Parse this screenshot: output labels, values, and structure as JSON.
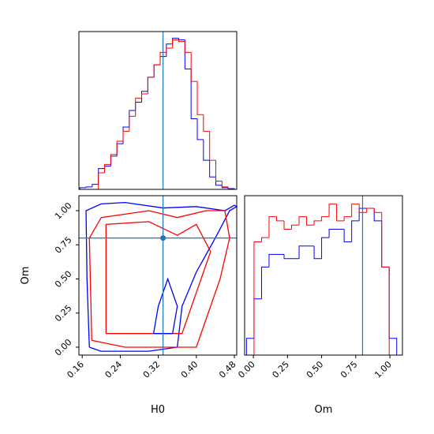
{
  "chart_data": [
    {
      "type": "histogram",
      "xlabel_hidden": true,
      "bins": [
        0.155,
        0.168,
        0.181,
        0.194,
        0.207,
        0.22,
        0.233,
        0.246,
        0.259,
        0.272,
        0.285,
        0.298,
        0.311,
        0.324,
        0.337,
        0.35,
        0.363,
        0.376,
        0.389,
        0.402,
        0.415,
        0.428,
        0.441,
        0.454,
        0.467,
        0.48
      ],
      "xlim": [
        0.153,
        0.485
      ],
      "ylim": [
        0,
        190
      ],
      "truth": 0.33,
      "truth_color": "#1f77b4",
      "series": [
        {
          "color": "#0000ff",
          "values": [
            2,
            3,
            6,
            25,
            28,
            40,
            55,
            75,
            95,
            105,
            118,
            135,
            150,
            160,
            175,
            182,
            180,
            145,
            85,
            60,
            35,
            15,
            5,
            2,
            1
          ]
        },
        {
          "color": "#ff0000",
          "values": [
            0,
            0,
            0,
            20,
            30,
            42,
            58,
            70,
            88,
            110,
            115,
            135,
            150,
            165,
            170,
            180,
            178,
            165,
            130,
            90,
            70,
            35,
            10,
            3,
            0
          ]
        }
      ]
    },
    {
      "type": "contour",
      "xlabel": "H0",
      "ylabel": "Om",
      "xlim": [
        0.153,
        0.485
      ],
      "ylim": [
        -0.058,
        1.11
      ],
      "xticks": [
        0.16,
        0.24,
        0.32,
        {
          "value": 0.4,
          "label": "0.40"
        },
        0.48
      ],
      "yticks": [
        {
          "value": 0,
          "label": "0.00"
        },
        0.25,
        {
          "value": 0.5,
          "label": "0.50"
        },
        0.75,
        {
          "value": 1,
          "label": "1.00"
        }
      ],
      "truth": [
        0.33,
        0.8
      ],
      "truth_color": "#1f77b4",
      "contours": [
        {
          "color": "#0000ff",
          "x": [
            0.175,
            0.17,
            0.168,
            0.2,
            0.25,
            0.33,
            0.4,
            0.46,
            0.48,
            0.485,
            0.47,
            0.44,
            0.4,
            0.37,
            0.36,
            0.3,
            0.2,
            0.175
          ],
          "y": [
            0.0,
            0.5,
            1.0,
            1.05,
            1.06,
            1.02,
            1.03,
            1.0,
            1.04,
            1.03,
            1.0,
            0.8,
            0.55,
            0.3,
            0.0,
            -0.03,
            -0.03,
            0.0
          ]
        },
        {
          "color": "#ff0000",
          "x": [
            0.18,
            0.175,
            0.2,
            0.3,
            0.36,
            0.42,
            0.46,
            0.47,
            0.45,
            0.42,
            0.4,
            0.25,
            0.18
          ],
          "y": [
            0.05,
            0.8,
            0.95,
            1.0,
            0.95,
            1.0,
            1.0,
            0.8,
            0.5,
            0.2,
            0.0,
            0.0,
            0.05
          ]
        },
        {
          "color": "#ff0000",
          "x": [
            0.21,
            0.21,
            0.3,
            0.36,
            0.4,
            0.43,
            0.4,
            0.37,
            0.3,
            0.21
          ],
          "y": [
            0.1,
            0.9,
            0.92,
            0.82,
            0.9,
            0.7,
            0.4,
            0.1,
            0.1,
            0.1
          ]
        },
        {
          "color": "#0000ff",
          "x": [
            0.31,
            0.32,
            0.34,
            0.36,
            0.35,
            0.31
          ],
          "y": [
            0.1,
            0.3,
            0.5,
            0.3,
            0.1,
            0.1
          ]
        }
      ]
    },
    {
      "type": "histogram",
      "xlabel": "Om",
      "bins": [
        -0.05,
        0.005,
        0.06,
        0.115,
        0.17,
        0.225,
        0.28,
        0.335,
        0.39,
        0.445,
        0.5,
        0.555,
        0.61,
        0.665,
        0.72,
        0.775,
        0.83,
        0.885,
        0.94,
        0.995,
        1.05
      ],
      "xlim": [
        -0.064,
        1.092
      ],
      "ylim": [
        0,
        190
      ],
      "truth": 0.8,
      "truth_color": "#1f77b4",
      "xticks": [
        {
          "value": 0,
          "label": "0.00"
        },
        0.25,
        {
          "value": 0.5,
          "label": "0.50"
        },
        0.75,
        {
          "value": 1,
          "label": "1.00"
        }
      ],
      "series": [
        {
          "color": "#0000ff",
          "values": [
            20,
            67,
            105,
            120,
            120,
            115,
            115,
            130,
            130,
            115,
            140,
            150,
            150,
            135,
            160,
            175,
            175,
            160,
            105,
            20
          ]
        },
        {
          "color": "#ff0000",
          "values": [
            0,
            135,
            140,
            165,
            160,
            150,
            155,
            165,
            155,
            160,
            165,
            180,
            160,
            165,
            180,
            170,
            175,
            170,
            105,
            0
          ]
        }
      ]
    }
  ]
}
